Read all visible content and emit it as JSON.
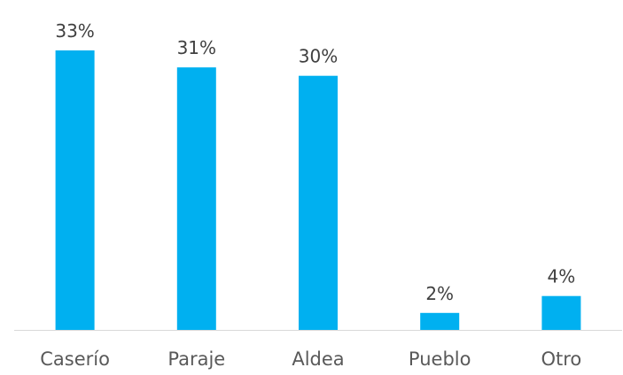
{
  "chart_data": {
    "type": "bar",
    "categories": [
      "Caserío",
      "Paraje",
      "Aldea",
      "Pueblo",
      "Otro"
    ],
    "values": [
      33,
      31,
      30,
      2,
      4
    ],
    "data_labels": [
      "33%",
      "31%",
      "30%",
      "2%",
      "4%"
    ],
    "value_unit": "%",
    "ylim": [
      0,
      36
    ],
    "grid": false,
    "legend": "none",
    "colors": {
      "bar": "#00B0F0",
      "axis": "#D9D9D9",
      "label_text": "#404040",
      "category_text": "#595959"
    }
  }
}
